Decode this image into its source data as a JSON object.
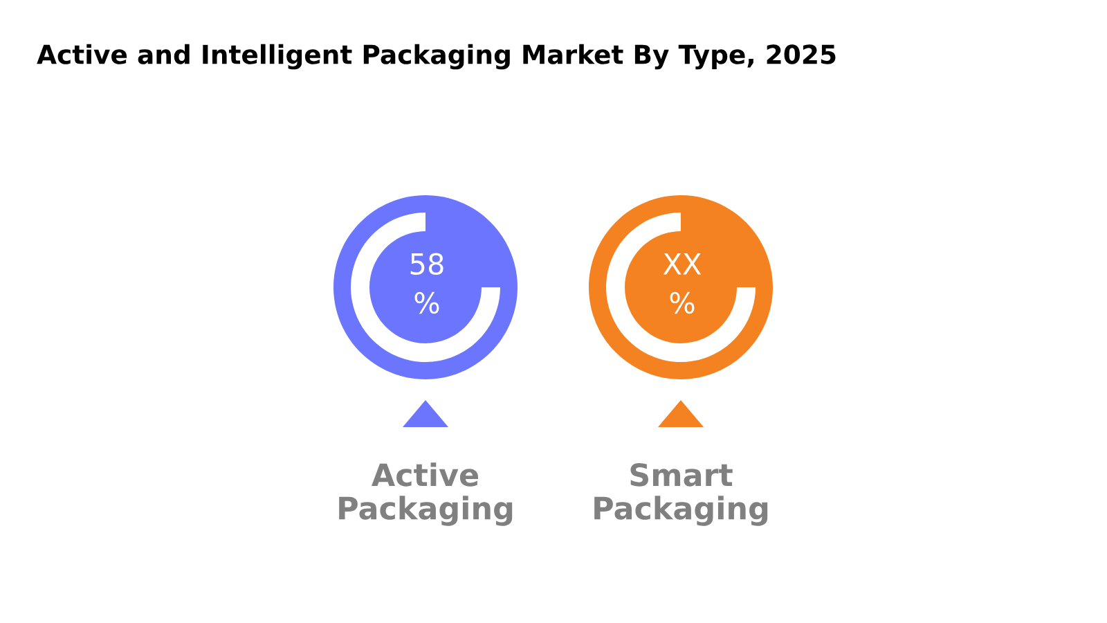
{
  "chart_data": {
    "type": "other",
    "title": "Active and Intelligent Packaging Market By Type, 2025",
    "categories": [
      "Active Packaging",
      "Smart Packaging"
    ],
    "values": [
      58,
      null
    ],
    "value_labels": [
      "58 %",
      "XX %"
    ],
    "colors": [
      "#6b75fe",
      "#f58220"
    ]
  }
}
